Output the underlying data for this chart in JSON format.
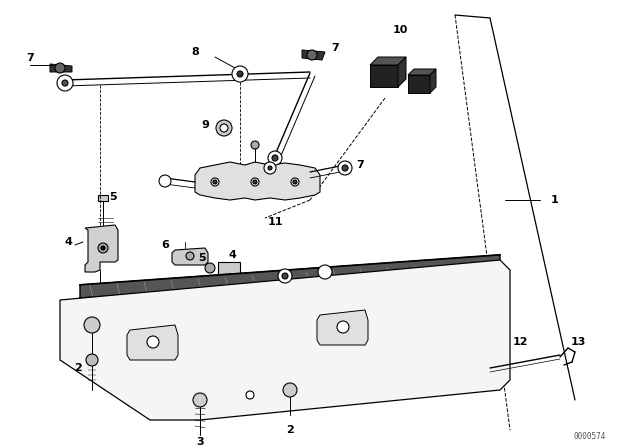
{
  "bg_color": "#ffffff",
  "fig_width": 6.4,
  "fig_height": 4.48,
  "dpi": 100,
  "watermark": "0000574",
  "line_color": "#000000",
  "gray": "#888888",
  "lw_main": 0.8,
  "lw_thick": 1.5,
  "lw_thin": 0.5
}
